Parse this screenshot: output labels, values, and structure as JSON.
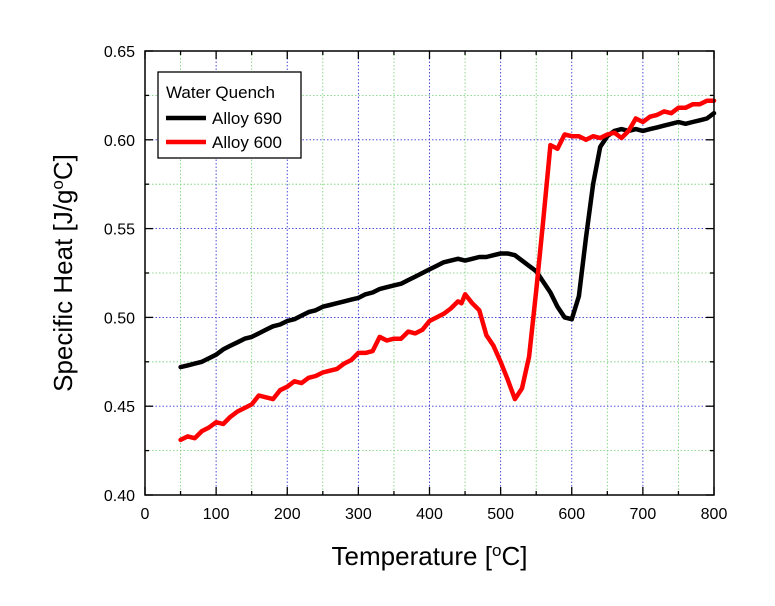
{
  "chart_data": {
    "type": "line",
    "xlabel": "Temperature",
    "xlabel_unit_open": " [",
    "xlabel_unit_sup": "o",
    "xlabel_unit_rest": "C]",
    "ylabel": "Specific Heat",
    "ylabel_unit_open": " [J/g",
    "ylabel_unit_sup": "o",
    "ylabel_unit_rest": "C]",
    "xlim": [
      0,
      800
    ],
    "ylim": [
      0.4,
      0.65
    ],
    "x_major_ticks": [
      0,
      100,
      200,
      300,
      400,
      500,
      600,
      700,
      800
    ],
    "x_tick_labels": [
      "0",
      "100",
      "200",
      "300",
      "400",
      "500",
      "600",
      "700",
      "800"
    ],
    "y_major_ticks": [
      0.4,
      0.45,
      0.5,
      0.55,
      0.6,
      0.65
    ],
    "y_tick_labels": [
      "0.40",
      "0.45",
      "0.50",
      "0.55",
      "0.60",
      "0.65"
    ],
    "grid": true,
    "legend": {
      "title": "Water Quench",
      "placement": "top-left"
    },
    "series": [
      {
        "name": "Alloy 690",
        "color": "#000000",
        "points": [
          [
            50,
            0.472
          ],
          [
            60,
            0.473
          ],
          [
            70,
            0.474
          ],
          [
            80,
            0.475
          ],
          [
            90,
            0.477
          ],
          [
            100,
            0.479
          ],
          [
            110,
            0.482
          ],
          [
            120,
            0.484
          ],
          [
            130,
            0.486
          ],
          [
            140,
            0.488
          ],
          [
            150,
            0.489
          ],
          [
            160,
            0.491
          ],
          [
            170,
            0.493
          ],
          [
            180,
            0.495
          ],
          [
            190,
            0.496
          ],
          [
            200,
            0.498
          ],
          [
            210,
            0.499
          ],
          [
            220,
            0.501
          ],
          [
            230,
            0.503
          ],
          [
            240,
            0.504
          ],
          [
            250,
            0.506
          ],
          [
            260,
            0.507
          ],
          [
            270,
            0.508
          ],
          [
            280,
            0.509
          ],
          [
            290,
            0.51
          ],
          [
            300,
            0.511
          ],
          [
            310,
            0.513
          ],
          [
            320,
            0.514
          ],
          [
            330,
            0.516
          ],
          [
            340,
            0.517
          ],
          [
            350,
            0.518
          ],
          [
            360,
            0.519
          ],
          [
            370,
            0.521
          ],
          [
            380,
            0.523
          ],
          [
            390,
            0.525
          ],
          [
            400,
            0.527
          ],
          [
            410,
            0.529
          ],
          [
            420,
            0.531
          ],
          [
            430,
            0.532
          ],
          [
            440,
            0.533
          ],
          [
            450,
            0.532
          ],
          [
            460,
            0.533
          ],
          [
            470,
            0.534
          ],
          [
            480,
            0.534
          ],
          [
            490,
            0.535
          ],
          [
            500,
            0.536
          ],
          [
            510,
            0.536
          ],
          [
            520,
            0.535
          ],
          [
            530,
            0.532
          ],
          [
            540,
            0.529
          ],
          [
            550,
            0.526
          ],
          [
            560,
            0.52
          ],
          [
            570,
            0.514
          ],
          [
            580,
            0.506
          ],
          [
            590,
            0.5
          ],
          [
            600,
            0.499
          ],
          [
            610,
            0.512
          ],
          [
            620,
            0.545
          ],
          [
            630,
            0.575
          ],
          [
            640,
            0.596
          ],
          [
            650,
            0.602
          ],
          [
            660,
            0.605
          ],
          [
            670,
            0.606
          ],
          [
            680,
            0.605
          ],
          [
            690,
            0.606
          ],
          [
            700,
            0.605
          ],
          [
            710,
            0.606
          ],
          [
            720,
            0.607
          ],
          [
            730,
            0.608
          ],
          [
            740,
            0.609
          ],
          [
            750,
            0.61
          ],
          [
            760,
            0.609
          ],
          [
            770,
            0.61
          ],
          [
            780,
            0.611
          ],
          [
            790,
            0.612
          ],
          [
            800,
            0.615
          ]
        ]
      },
      {
        "name": "Alloy 600",
        "color": "#ff0000",
        "points": [
          [
            50,
            0.431
          ],
          [
            60,
            0.433
          ],
          [
            70,
            0.432
          ],
          [
            80,
            0.436
          ],
          [
            90,
            0.438
          ],
          [
            100,
            0.441
          ],
          [
            110,
            0.44
          ],
          [
            120,
            0.444
          ],
          [
            130,
            0.447
          ],
          [
            140,
            0.449
          ],
          [
            150,
            0.451
          ],
          [
            160,
            0.456
          ],
          [
            170,
            0.455
          ],
          [
            180,
            0.454
          ],
          [
            190,
            0.459
          ],
          [
            200,
            0.461
          ],
          [
            210,
            0.464
          ],
          [
            220,
            0.463
          ],
          [
            230,
            0.466
          ],
          [
            240,
            0.467
          ],
          [
            250,
            0.469
          ],
          [
            260,
            0.47
          ],
          [
            270,
            0.471
          ],
          [
            280,
            0.474
          ],
          [
            290,
            0.476
          ],
          [
            300,
            0.48
          ],
          [
            310,
            0.48
          ],
          [
            320,
            0.481
          ],
          [
            330,
            0.489
          ],
          [
            340,
            0.487
          ],
          [
            350,
            0.488
          ],
          [
            360,
            0.488
          ],
          [
            370,
            0.492
          ],
          [
            380,
            0.491
          ],
          [
            390,
            0.493
          ],
          [
            400,
            0.498
          ],
          [
            410,
            0.5
          ],
          [
            420,
            0.502
          ],
          [
            430,
            0.505
          ],
          [
            440,
            0.509
          ],
          [
            445,
            0.508
          ],
          [
            450,
            0.513
          ],
          [
            460,
            0.508
          ],
          [
            465,
            0.506
          ],
          [
            470,
            0.504
          ],
          [
            480,
            0.49
          ],
          [
            490,
            0.484
          ],
          [
            500,
            0.475
          ],
          [
            510,
            0.465
          ],
          [
            520,
            0.454
          ],
          [
            530,
            0.46
          ],
          [
            540,
            0.478
          ],
          [
            550,
            0.515
          ],
          [
            560,
            0.555
          ],
          [
            570,
            0.597
          ],
          [
            580,
            0.595
          ],
          [
            590,
            0.603
          ],
          [
            600,
            0.602
          ],
          [
            610,
            0.602
          ],
          [
            620,
            0.6
          ],
          [
            630,
            0.602
          ],
          [
            640,
            0.601
          ],
          [
            650,
            0.603
          ],
          [
            660,
            0.604
          ],
          [
            670,
            0.601
          ],
          [
            680,
            0.605
          ],
          [
            690,
            0.612
          ],
          [
            700,
            0.61
          ],
          [
            710,
            0.613
          ],
          [
            720,
            0.614
          ],
          [
            730,
            0.616
          ],
          [
            740,
            0.615
          ],
          [
            750,
            0.618
          ],
          [
            760,
            0.618
          ],
          [
            770,
            0.62
          ],
          [
            780,
            0.62
          ],
          [
            790,
            0.622
          ],
          [
            800,
            0.622
          ]
        ]
      }
    ]
  }
}
